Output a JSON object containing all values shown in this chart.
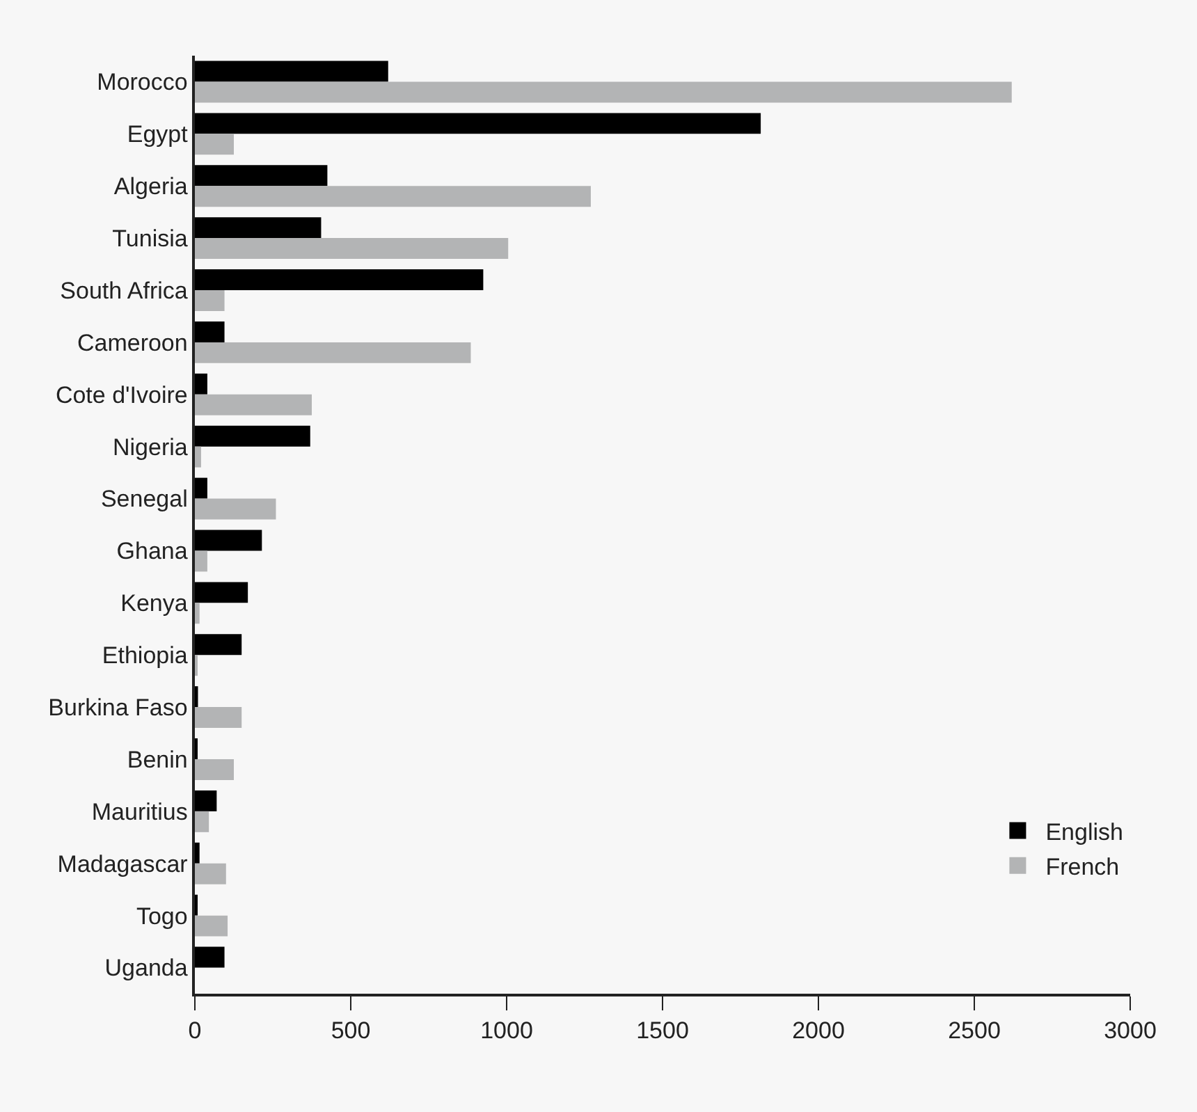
{
  "chart_data": {
    "type": "bar",
    "orientation": "horizontal",
    "categories": [
      "Morocco",
      "Egypt",
      "Algeria",
      "Tunisia",
      "South Africa",
      "Cameroon",
      "Cote d'Ivoire",
      "Nigeria",
      "Senegal",
      "Ghana",
      "Kenya",
      "Ethiopia",
      "Burkina Faso",
      "Benin",
      "Mauritius",
      "Madagascar",
      "Togo",
      "Uganda"
    ],
    "series": [
      {
        "name": "English",
        "color": "#000000",
        "values": [
          620,
          1815,
          425,
          405,
          925,
          95,
          40,
          370,
          40,
          215,
          170,
          150,
          10,
          5,
          70,
          15,
          5,
          95
        ]
      },
      {
        "name": "French",
        "color": "#b3b4b5",
        "values": [
          2620,
          125,
          1270,
          1005,
          95,
          885,
          375,
          20,
          260,
          40,
          15,
          5,
          150,
          125,
          45,
          100,
          105,
          0
        ]
      }
    ],
    "xlim": [
      0,
      3000
    ],
    "xticks": [
      0,
      500,
      1000,
      1500,
      2000,
      2500,
      3000
    ],
    "grid": false,
    "legend": "bottom right"
  }
}
